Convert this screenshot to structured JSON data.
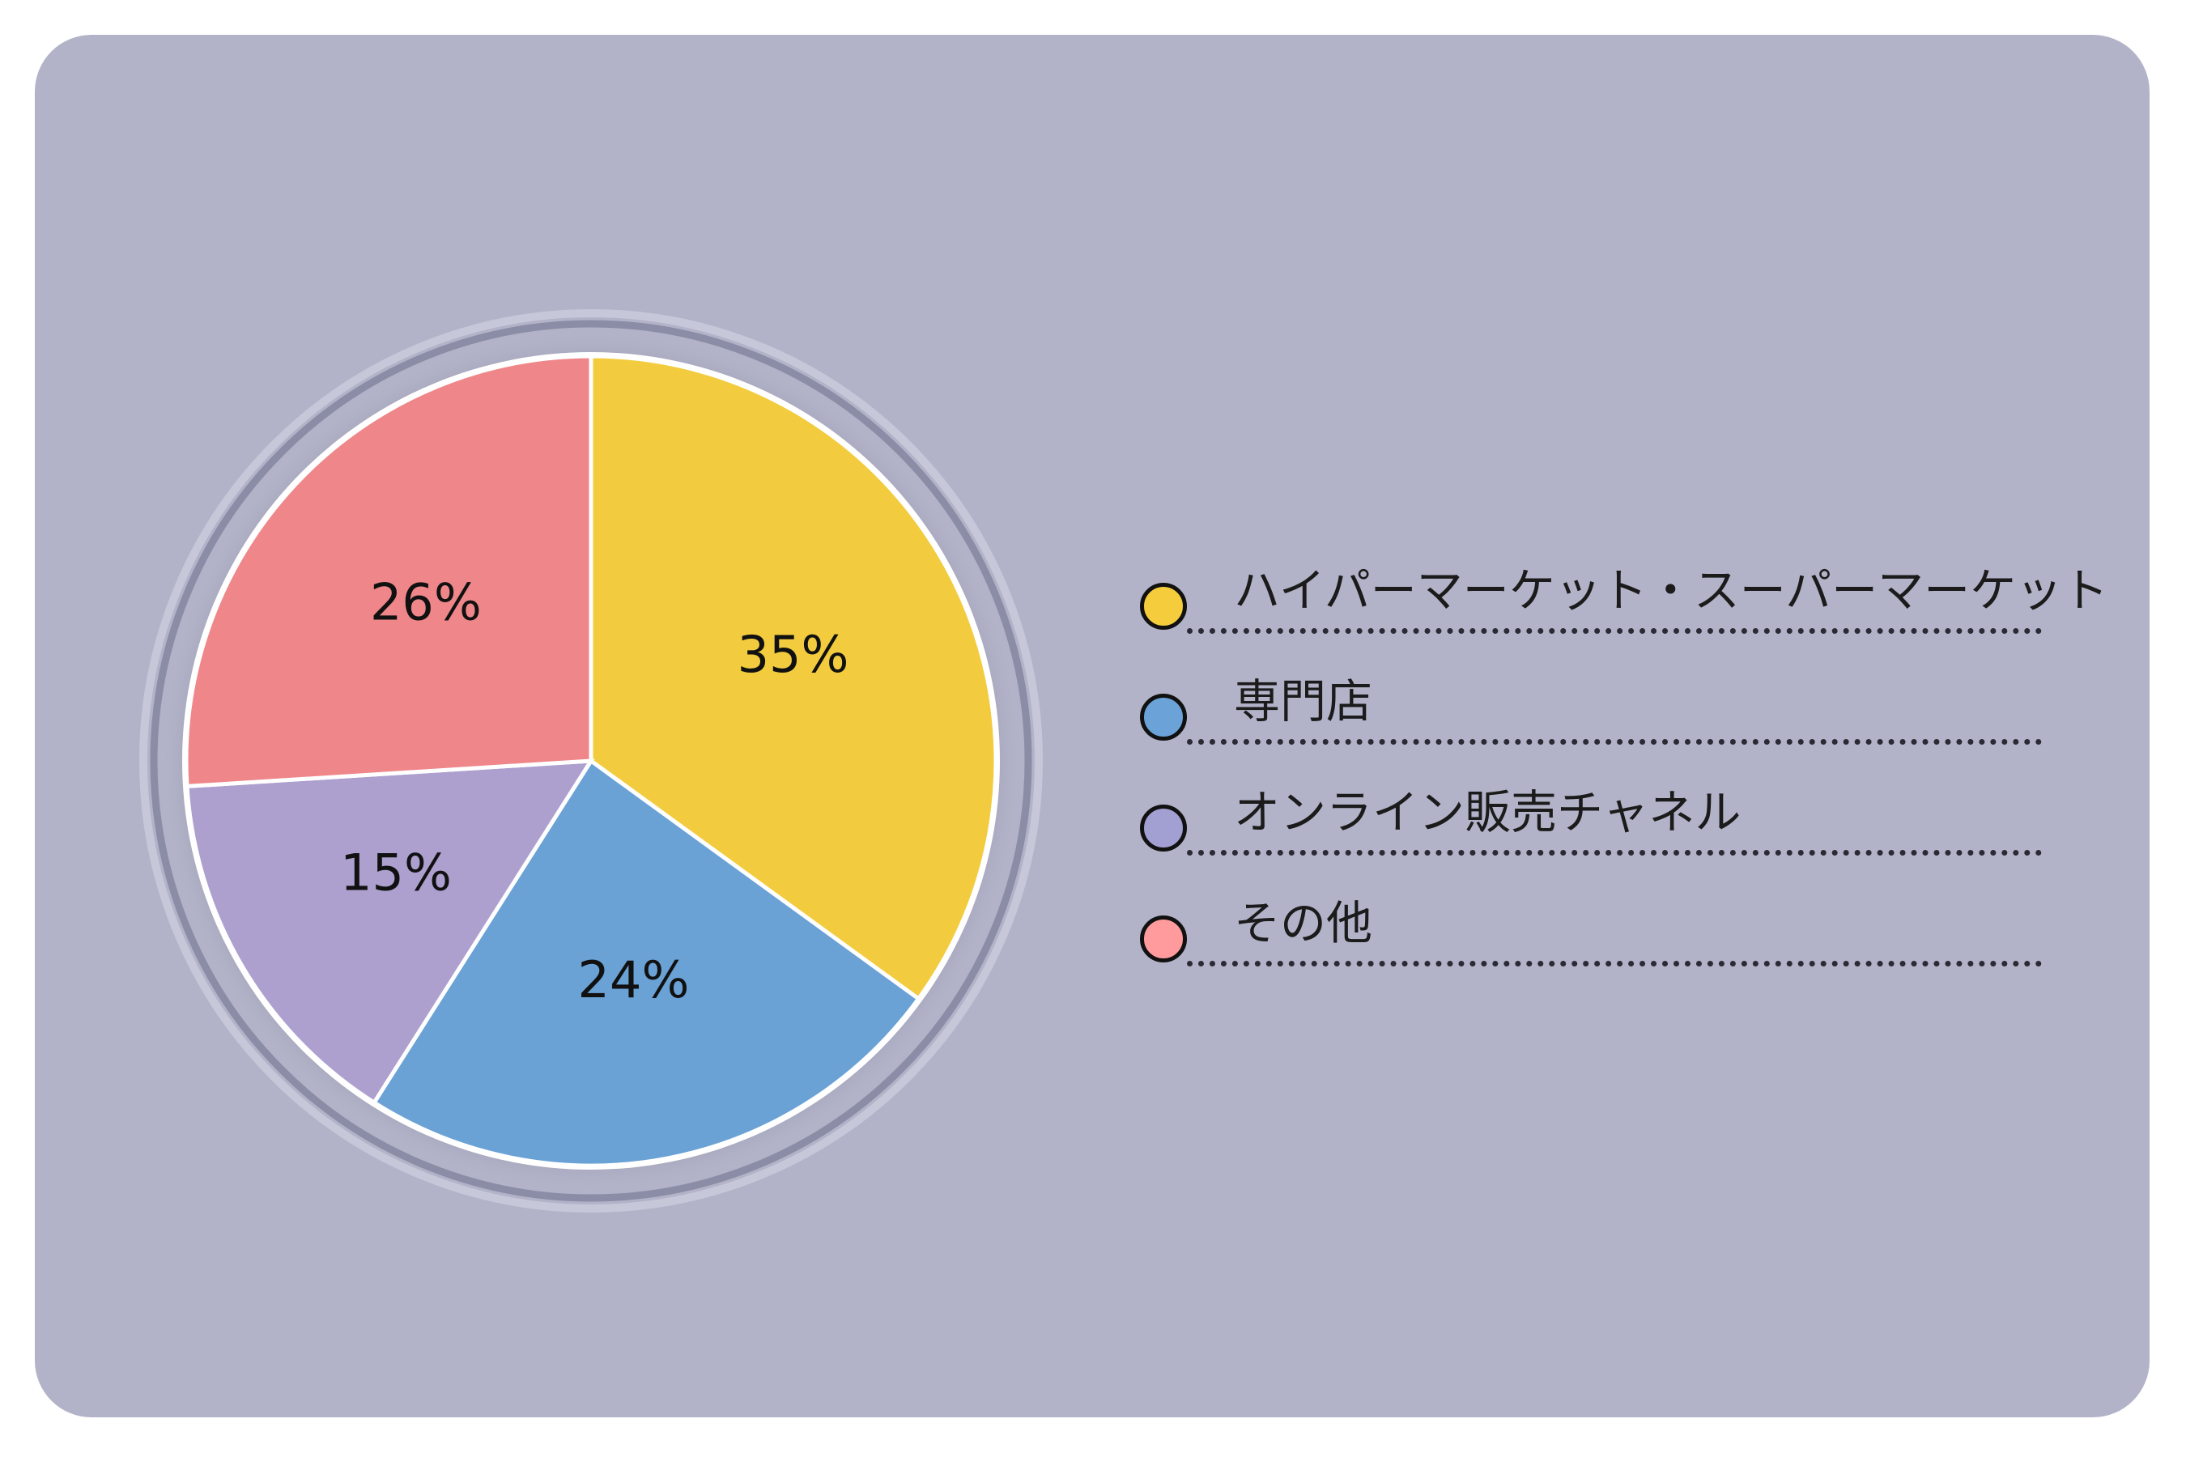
{
  "chart_data": {
    "type": "pie",
    "categories": [
      "ハイパーマーケット・スーパーマーケット",
      "専門店",
      "オンライン販売チャネル",
      "その他"
    ],
    "values": [
      35,
      24,
      15,
      26
    ],
    "labels": [
      "35%",
      "24%",
      "15%",
      "26%"
    ],
    "colors": [
      "#f2cc3e",
      "#6aa2d6",
      "#ada0cf",
      "#ef878a"
    ],
    "legend_colors": [
      "#f5cd3c",
      "#6ba3d8",
      "#a29fd2",
      "#ff9b9d"
    ],
    "legend_position": "right"
  }
}
